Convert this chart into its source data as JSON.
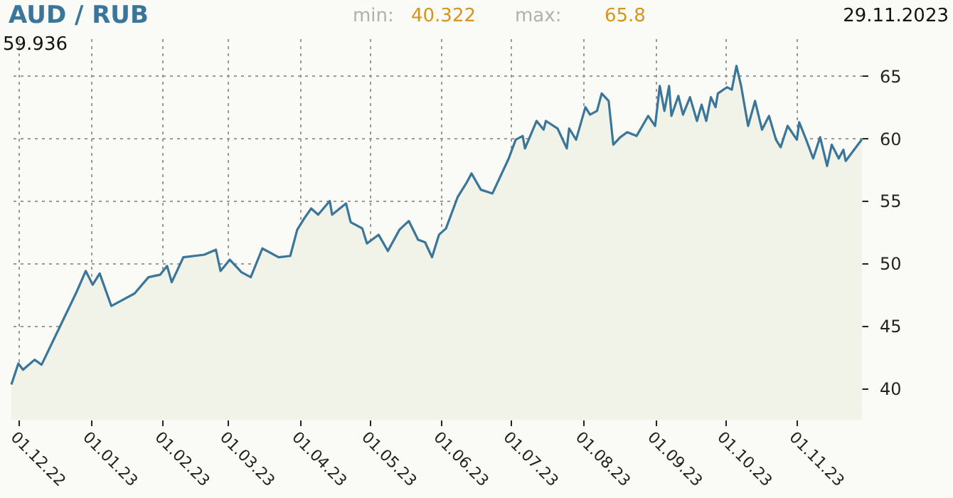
{
  "chart_data": {
    "type": "area",
    "title": "AUD / RUB",
    "annotations": [
      "min:",
      "40.322",
      "max:",
      "65.8",
      "29.11.2023",
      "59.936"
    ],
    "x": [
      "2022-11-28",
      "2022-12-01",
      "2022-12-03",
      "2022-12-08",
      "2022-12-11",
      "2022-12-26",
      "2022-12-30",
      "2023-01-02",
      "2023-01-05",
      "2023-01-10",
      "2023-01-14",
      "2023-01-20",
      "2023-01-26",
      "2023-01-31",
      "2023-02-03",
      "2023-02-05",
      "2023-02-10",
      "2023-02-19",
      "2023-02-24",
      "2023-02-26",
      "2023-03-02",
      "2023-03-07",
      "2023-03-11",
      "2023-03-16",
      "2023-03-23",
      "2023-03-28",
      "2023-03-31",
      "2023-04-03",
      "2023-04-06",
      "2023-04-09",
      "2023-04-14",
      "2023-04-15",
      "2023-04-21",
      "2023-04-23",
      "2023-04-28",
      "2023-04-30",
      "2023-05-05",
      "2023-05-09",
      "2023-05-14",
      "2023-05-18",
      "2023-05-22",
      "2023-05-25",
      "2023-05-28",
      "2023-05-31",
      "2023-06-03",
      "2023-06-08",
      "2023-06-12",
      "2023-06-14",
      "2023-06-18",
      "2023-06-23",
      "2023-06-26",
      "2023-06-30",
      "2023-07-03",
      "2023-07-06",
      "2023-07-07",
      "2023-07-12",
      "2023-07-15",
      "2023-07-16",
      "2023-07-21",
      "2023-07-25",
      "2023-07-26",
      "2023-07-29",
      "2023-08-02",
      "2023-08-04",
      "2023-08-07",
      "2023-08-09",
      "2023-08-12",
      "2023-08-14",
      "2023-08-17",
      "2023-08-20",
      "2023-08-24",
      "2023-08-29",
      "2023-09-01",
      "2023-09-03",
      "2023-09-05",
      "2023-09-07",
      "2023-09-08",
      "2023-09-11",
      "2023-09-13",
      "2023-09-16",
      "2023-09-19",
      "2023-09-21",
      "2023-09-23",
      "2023-09-25",
      "2023-09-27",
      "2023-09-28",
      "2023-10-02",
      "2023-10-04",
      "2023-10-06",
      "2023-10-08",
      "2023-10-11",
      "2023-10-14",
      "2023-10-17",
      "2023-10-20",
      "2023-10-23",
      "2023-10-25",
      "2023-10-28",
      "2023-11-01",
      "2023-11-02",
      "2023-11-05",
      "2023-11-08",
      "2023-11-11",
      "2023-11-14",
      "2023-11-16",
      "2023-11-19",
      "2023-11-21",
      "2023-11-22",
      "2023-11-29"
    ],
    "series": [
      {
        "color": "#3a7699",
        "values": [
          40.322,
          42.0,
          41.5,
          42.3,
          41.9,
          47.7,
          49.4,
          48.3,
          49.2,
          46.6,
          47.0,
          47.6,
          48.9,
          49.1,
          49.8,
          48.5,
          50.5,
          50.7,
          51.1,
          49.4,
          50.3,
          49.3,
          48.9,
          51.2,
          50.5,
          50.6,
          52.7,
          53.6,
          54.4,
          53.9,
          55.0,
          53.9,
          54.8,
          53.3,
          52.8,
          51.6,
          52.3,
          51.0,
          52.7,
          53.4,
          51.9,
          51.7,
          50.5,
          52.3,
          52.8,
          55.3,
          56.5,
          57.2,
          55.9,
          55.6,
          56.8,
          58.4,
          59.9,
          60.2,
          59.2,
          61.4,
          60.7,
          61.4,
          60.8,
          59.2,
          60.8,
          59.9,
          62.5,
          61.9,
          62.2,
          63.6,
          63.0,
          59.5,
          60.1,
          60.5,
          60.2,
          61.8,
          61.0,
          64.2,
          62.2,
          64.2,
          61.8,
          63.4,
          61.9,
          63.3,
          61.4,
          62.7,
          61.4,
          63.3,
          62.5,
          63.6,
          64.1,
          63.9,
          65.8,
          64.2,
          61.0,
          63.0,
          60.7,
          61.8,
          59.9,
          59.3,
          61.0,
          59.9,
          61.3,
          59.9,
          58.4,
          60.1,
          57.8,
          59.5,
          58.4,
          59.1,
          58.2,
          59.936
        ]
      }
    ],
    "xlim": [
      "2022-11-28",
      "2023-11-29"
    ],
    "xticks": [
      {
        "value": "2022-12-01",
        "label": "01.12.22"
      },
      {
        "value": "2023-01-01",
        "label": "01.01.23"
      },
      {
        "value": "2023-02-01",
        "label": "01.02.23"
      },
      {
        "value": "2023-03-01",
        "label": "01.03.23"
      },
      {
        "value": "2023-04-01",
        "label": "01.04.23"
      },
      {
        "value": "2023-05-01",
        "label": "01.05.23"
      },
      {
        "value": "2023-06-01",
        "label": "01.06.23"
      },
      {
        "value": "2023-07-01",
        "label": "01.07.23"
      },
      {
        "value": "2023-08-01",
        "label": "01.08.23"
      },
      {
        "value": "2023-09-01",
        "label": "01.09.23"
      },
      {
        "value": "2023-10-01",
        "label": "01.10.23"
      },
      {
        "value": "2023-11-01",
        "label": "01.11.23"
      }
    ],
    "ylim": [
      37.5,
      68
    ],
    "yticks": [
      40,
      45,
      50,
      55,
      60,
      65
    ],
    "grid": true,
    "marker": "none",
    "line_style": "solid"
  }
}
